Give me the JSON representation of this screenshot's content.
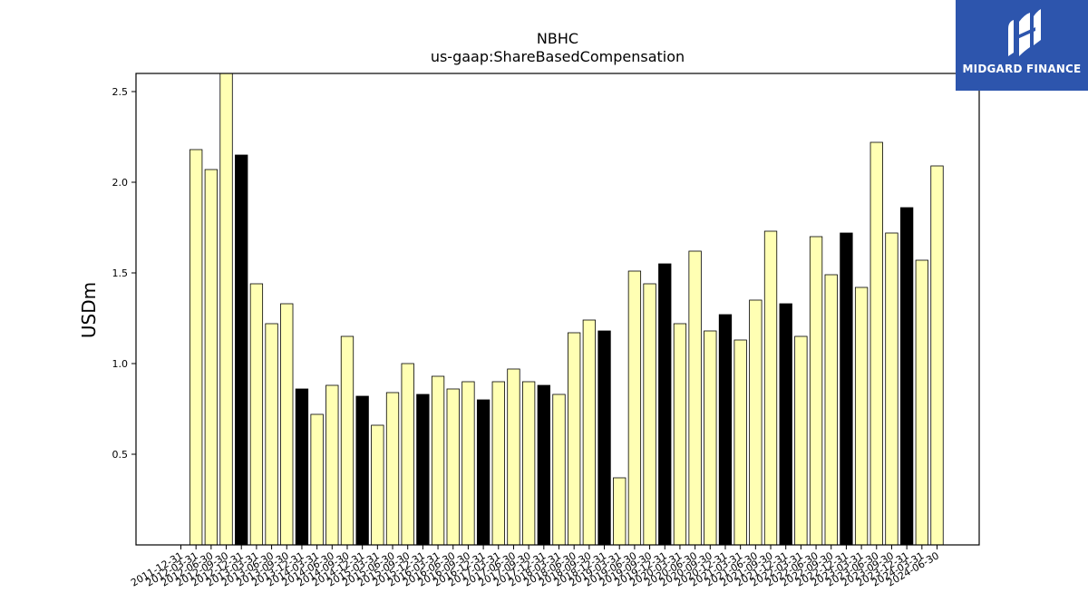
{
  "chart_data": {
    "type": "bar",
    "title": "NBHC",
    "subtitle": "us-gaap:ShareBasedCompensation",
    "ylabel": "USDm",
    "xlabel": "",
    "ylim": [
      0,
      2.6
    ],
    "yticks": [
      "0.5",
      "1.0",
      "1.5",
      "2.0",
      "2.5"
    ],
    "grid": false,
    "colors": {
      "normal": "#ffffb3",
      "highlight": "#000000",
      "edge": "#000000"
    },
    "categories": [
      "2011-12-31",
      "2012-03-31",
      "2012-06-30",
      "2012-09-30",
      "2012-12-31",
      "2013-03-31",
      "2013-06-30",
      "2013-09-30",
      "2013-12-31",
      "2014-03-31",
      "2014-06-30",
      "2014-09-30",
      "2014-12-31",
      "2015-03-31",
      "2015-06-30",
      "2015-09-30",
      "2015-12-31",
      "2016-03-31",
      "2016-06-30",
      "2016-09-30",
      "2016-12-31",
      "2017-03-31",
      "2017-06-30",
      "2017-09-30",
      "2017-12-31",
      "2018-03-31",
      "2018-06-30",
      "2018-09-30",
      "2018-12-31",
      "2019-03-31",
      "2019-06-30",
      "2019-09-30",
      "2019-12-31",
      "2020-03-31",
      "2020-06-30",
      "2020-09-30",
      "2020-12-31",
      "2021-03-31",
      "2021-06-30",
      "2021-09-30",
      "2021-12-31",
      "2022-03-31",
      "2022-06-30",
      "2022-09-30",
      "2022-12-31",
      "2023-03-31",
      "2023-06-30",
      "2023-09-30",
      "2023-12-31",
      "2024-03-31",
      "2024-06-30"
    ],
    "values": [
      null,
      2.18,
      2.07,
      2.6,
      2.15,
      1.44,
      1.22,
      1.33,
      0.86,
      0.72,
      0.88,
      1.15,
      0.82,
      0.66,
      0.84,
      1.0,
      0.83,
      0.93,
      0.86,
      0.9,
      0.8,
      0.9,
      0.97,
      0.9,
      0.88,
      0.83,
      1.17,
      1.24,
      1.18,
      0.37,
      1.51,
      1.44,
      1.55,
      1.22,
      1.62,
      1.18,
      1.27,
      1.13,
      1.35,
      1.73,
      1.33,
      1.15,
      1.7,
      1.49,
      1.72,
      1.42,
      2.22,
      1.72,
      1.86,
      1.57,
      2.09
    ],
    "highlight": [
      false,
      false,
      false,
      false,
      true,
      false,
      false,
      false,
      true,
      false,
      false,
      false,
      true,
      false,
      false,
      false,
      true,
      false,
      false,
      false,
      true,
      false,
      false,
      false,
      true,
      false,
      false,
      false,
      true,
      false,
      false,
      false,
      true,
      false,
      false,
      false,
      true,
      false,
      false,
      false,
      true,
      false,
      false,
      false,
      true,
      false,
      false,
      false,
      true,
      false,
      false
    ]
  },
  "logo": {
    "text": "MIDGARD FINANCE"
  }
}
